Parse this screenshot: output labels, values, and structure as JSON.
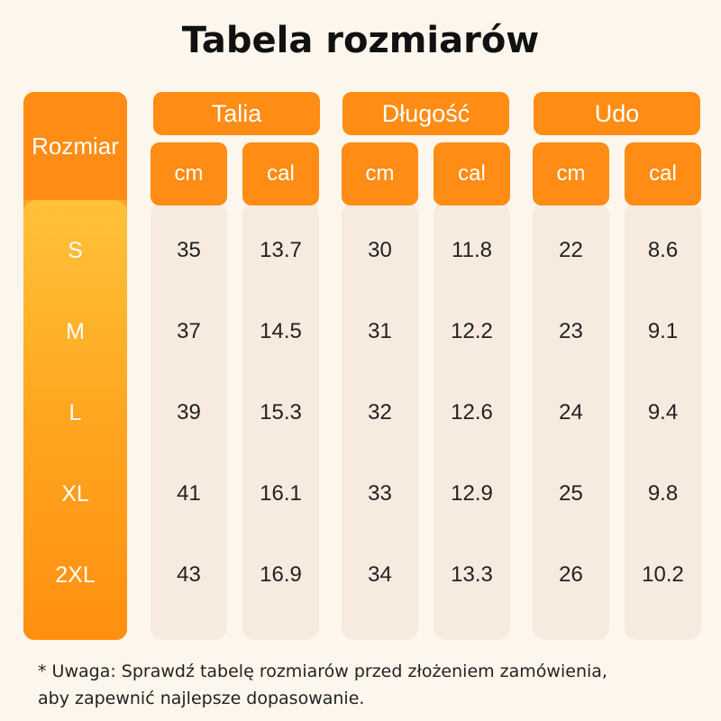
{
  "title": "Tabela rozmiarów",
  "size_header": "Rozmiar",
  "groups": [
    {
      "label": "Talia",
      "units": [
        "cm",
        "cal"
      ]
    },
    {
      "label": "Długość",
      "units": [
        "cm",
        "cal"
      ]
    },
    {
      "label": "Udo",
      "units": [
        "cm",
        "cal"
      ]
    }
  ],
  "rows": [
    {
      "size": "S",
      "values": [
        "35",
        "13.7",
        "30",
        "11.8",
        "22",
        "8.6"
      ]
    },
    {
      "size": "M",
      "values": [
        "37",
        "14.5",
        "31",
        "12.2",
        "23",
        "9.1"
      ]
    },
    {
      "size": "L",
      "values": [
        "39",
        "15.3",
        "32",
        "12.6",
        "24",
        "9.4"
      ]
    },
    {
      "size": "XL",
      "values": [
        "41",
        "16.1",
        "33",
        "12.9",
        "25",
        "9.8"
      ]
    },
    {
      "size": "2XL",
      "values": [
        "43",
        "16.9",
        "34",
        "13.3",
        "26",
        "10.2"
      ]
    }
  ],
  "note": {
    "line1": "* Uwaga: Sprawdź tabelę rozmiarów przed złożeniem zamówienia,",
    "line2": "aby zapewnić najlepsze dopasowanie."
  },
  "colors": {
    "accent": "#ff8c14",
    "background": "#fdf6ec",
    "cell_background": "#f7eadf"
  }
}
